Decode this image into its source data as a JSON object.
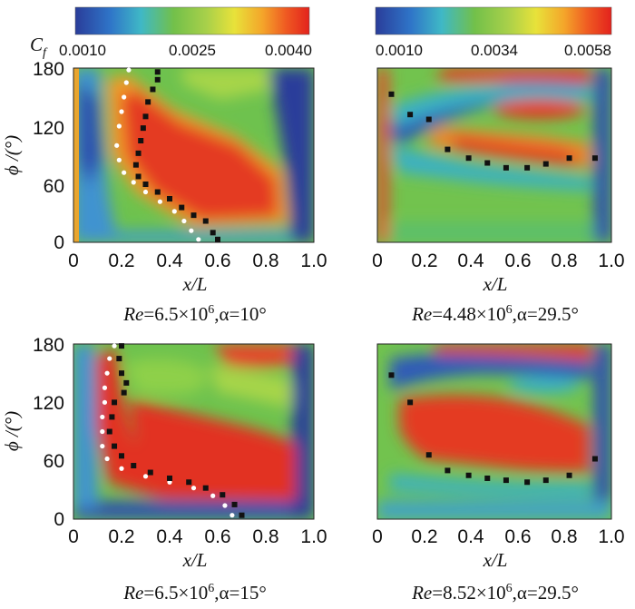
{
  "figure": {
    "colorbar_label": "C",
    "colorbar_label_sub": "f",
    "colors": {
      "low": "#2a3d9a",
      "mid": "#7ac143",
      "high": "#e8231d",
      "symbol": "#111111",
      "transition_line": "#ffffff"
    }
  },
  "chart_data": [
    {
      "type": "heatmap",
      "caption": {
        "re_label": "Re",
        "re_value": "=6.5×10",
        "re_exp": "6",
        "alpha_text": ",α=10°"
      },
      "colorbar": {
        "min": 0.001,
        "max": 0.004,
        "tick_labels": [
          "0.0010",
          "0.0025",
          "0.0040"
        ]
      },
      "xlabel": "x/L",
      "ylabel": "ϕ /(°)",
      "xlim": [
        0,
        1.0
      ],
      "ylim": [
        0,
        180
      ],
      "xticks": [
        "0",
        "0.2",
        "0.4",
        "0.6",
        "0.8",
        "1.0"
      ],
      "yticks": [
        "0",
        "60",
        "120",
        "180"
      ],
      "transition_measured": [
        [
          0.35,
          176
        ],
        [
          0.35,
          168
        ],
        [
          0.33,
          158
        ],
        [
          0.31,
          145
        ],
        [
          0.3,
          130
        ],
        [
          0.29,
          118
        ],
        [
          0.28,
          105
        ],
        [
          0.27,
          92
        ],
        [
          0.26,
          80
        ],
        [
          0.27,
          68
        ],
        [
          0.3,
          60
        ],
        [
          0.35,
          52
        ],
        [
          0.4,
          45
        ],
        [
          0.45,
          36
        ],
        [
          0.5,
          28
        ],
        [
          0.55,
          22
        ],
        [
          0.58,
          10
        ],
        [
          0.6,
          3
        ]
      ],
      "transition_predicted": [
        [
          0.23,
          178
        ],
        [
          0.22,
          165
        ],
        [
          0.21,
          150
        ],
        [
          0.2,
          135
        ],
        [
          0.19,
          120
        ],
        [
          0.18,
          100
        ],
        [
          0.19,
          85
        ],
        [
          0.21,
          72
        ],
        [
          0.25,
          62
        ],
        [
          0.3,
          52
        ],
        [
          0.36,
          42
        ],
        [
          0.42,
          32
        ],
        [
          0.46,
          22
        ],
        [
          0.49,
          12
        ],
        [
          0.52,
          3
        ]
      ]
    },
    {
      "type": "heatmap",
      "caption": {
        "re_label": "Re",
        "re_value": "=4.48×10",
        "re_exp": "6",
        "alpha_text": ",α=29.5°"
      },
      "colorbar": {
        "min": 0.001,
        "max": 0.0058,
        "tick_labels": [
          "0.0010",
          "0.0034",
          "0.0058"
        ]
      },
      "xlabel": "x/L",
      "ylabel": "",
      "xlim": [
        0,
        1.0
      ],
      "ylim": [
        0,
        180
      ],
      "xticks": [
        "0",
        "0.2",
        "0.4",
        "0.6",
        "0.8",
        "1.0"
      ],
      "yticks": [],
      "transition_measured": [
        [
          0.06,
          153
        ],
        [
          0.14,
          132
        ],
        [
          0.22,
          127
        ],
        [
          0.3,
          96
        ],
        [
          0.39,
          87
        ],
        [
          0.47,
          82
        ],
        [
          0.55,
          77
        ],
        [
          0.64,
          77
        ],
        [
          0.72,
          81
        ],
        [
          0.82,
          87
        ],
        [
          0.93,
          87
        ]
      ],
      "transition_predicted": []
    },
    {
      "type": "heatmap",
      "caption": {
        "re_label": "Re",
        "re_value": "=6.5×10",
        "re_exp": "6",
        "alpha_text": ",α=15°"
      },
      "colorbar": null,
      "xlabel": "x/L",
      "ylabel": "ϕ /(°)",
      "xlim": [
        0,
        1.0
      ],
      "ylim": [
        0,
        180
      ],
      "xticks": [
        "0",
        "0.2",
        "0.4",
        "0.6",
        "0.8",
        "1.0"
      ],
      "yticks": [
        "0",
        "60",
        "120",
        "180"
      ],
      "transition_measured": [
        [
          0.2,
          178
        ],
        [
          0.19,
          165
        ],
        [
          0.2,
          150
        ],
        [
          0.22,
          140
        ],
        [
          0.21,
          130
        ],
        [
          0.17,
          120
        ],
        [
          0.16,
          105
        ],
        [
          0.15,
          90
        ],
        [
          0.17,
          75
        ],
        [
          0.2,
          65
        ],
        [
          0.25,
          55
        ],
        [
          0.32,
          48
        ],
        [
          0.4,
          42
        ],
        [
          0.48,
          38
        ],
        [
          0.55,
          32
        ],
        [
          0.62,
          25
        ],
        [
          0.67,
          15
        ],
        [
          0.7,
          4
        ]
      ],
      "transition_predicted": [
        [
          0.17,
          178
        ],
        [
          0.15,
          165
        ],
        [
          0.14,
          150
        ],
        [
          0.13,
          135
        ],
        [
          0.13,
          120
        ],
        [
          0.12,
          105
        ],
        [
          0.12,
          90
        ],
        [
          0.12,
          75
        ],
        [
          0.14,
          62
        ],
        [
          0.2,
          52
        ],
        [
          0.3,
          44
        ],
        [
          0.4,
          38
        ],
        [
          0.5,
          32
        ],
        [
          0.58,
          24
        ],
        [
          0.63,
          14
        ],
        [
          0.66,
          4
        ]
      ]
    },
    {
      "type": "heatmap",
      "caption": {
        "re_label": "Re",
        "re_value": "=8.52×10",
        "re_exp": "6",
        "alpha_text": ",α=29.5°"
      },
      "colorbar": null,
      "xlabel": "x/L",
      "ylabel": "",
      "xlim": [
        0,
        1.0
      ],
      "ylim": [
        0,
        180
      ],
      "xticks": [
        "0",
        "0.2",
        "0.4",
        "0.6",
        "0.8",
        "1.0"
      ],
      "yticks": [],
      "transition_measured": [
        [
          0.06,
          148
        ],
        [
          0.14,
          120
        ],
        [
          0.22,
          66
        ],
        [
          0.3,
          50
        ],
        [
          0.39,
          45
        ],
        [
          0.47,
          42
        ],
        [
          0.55,
          40
        ],
        [
          0.64,
          38
        ],
        [
          0.72,
          40
        ],
        [
          0.82,
          45
        ],
        [
          0.93,
          62
        ]
      ],
      "transition_predicted": []
    }
  ]
}
